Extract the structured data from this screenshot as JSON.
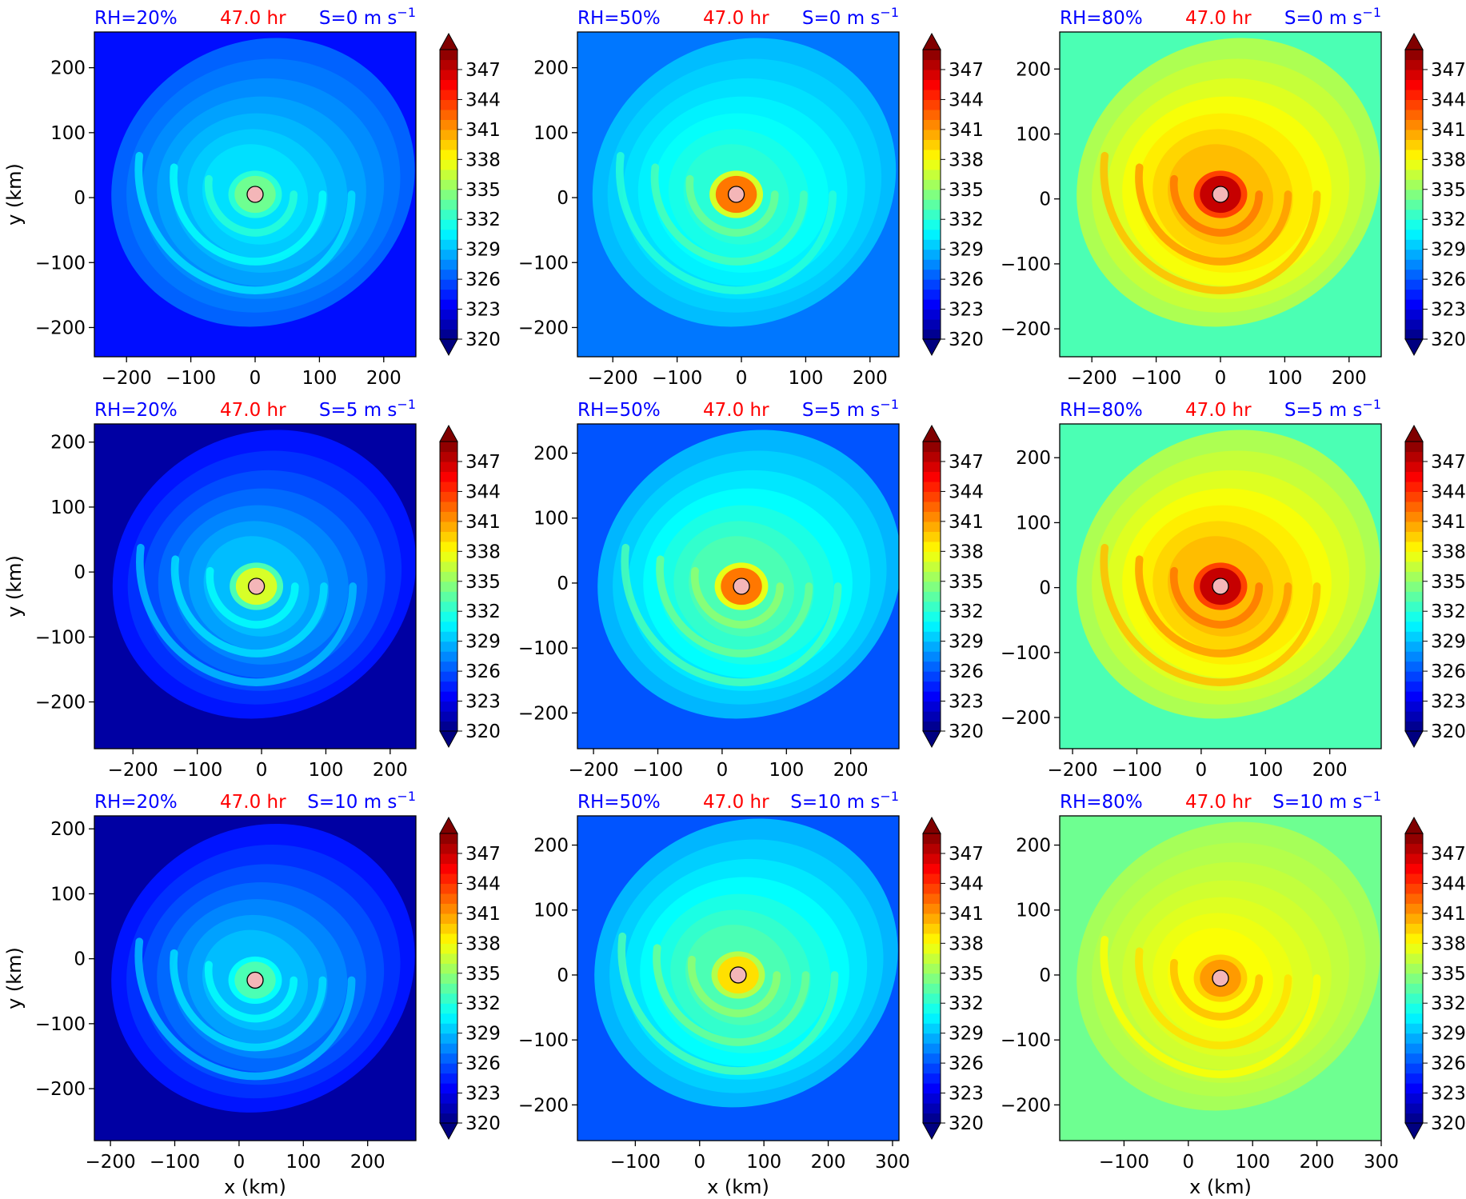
{
  "chart_data": {
    "type": "heatmap",
    "description_units": "color shading over x/y distance in km",
    "colorbar": {
      "ticks": [
        "347",
        "344",
        "341",
        "338",
        "335",
        "332",
        "329",
        "326",
        "323",
        "320"
      ],
      "range": [
        320,
        349
      ],
      "extend": "both",
      "colormap": "jet"
    },
    "axis_labels": {
      "x": "x (km)",
      "y": "y (km)"
    },
    "time_label": "47.0 hr",
    "colors": {
      "rh_label": "#0000ff",
      "time_label": "#ff0000",
      "shear_label": "#0000ff",
      "center_marker": "#f4b6b8"
    },
    "panels": [
      {
        "rh": "RH=20%",
        "time": "47.0 hr",
        "shear": "S=0 m s",
        "shear_exp": "−1",
        "xlim": [
          -250,
          250
        ],
        "ylim": [
          -245,
          255
        ],
        "xticks": [
          "−200",
          "−100",
          "0",
          "100",
          "200"
        ],
        "yticks": [
          "200",
          "100",
          "0",
          "−100",
          "−200"
        ],
        "center": [
          0,
          5
        ],
        "core_value": 334,
        "env_value": 324,
        "band_value": 330
      },
      {
        "rh": "RH=50%",
        "time": "47.0 hr",
        "shear": "S=0 m s",
        "shear_exp": "−1",
        "xlim": [
          -255,
          245
        ],
        "ylim": [
          -245,
          255
        ],
        "xticks": [
          "−200",
          "−100",
          "0",
          "100",
          "200"
        ],
        "yticks": [
          "200",
          "100",
          "0",
          "−100",
          "−200"
        ],
        "center": [
          -8,
          5
        ],
        "core_value": 342,
        "env_value": 327,
        "band_value": 332
      },
      {
        "rh": "RH=80%",
        "time": "47.0 hr",
        "shear": "S=0 m s",
        "shear_exp": "−1",
        "xlim": [
          -250,
          250
        ],
        "ylim": [
          -243,
          257
        ],
        "xticks": [
          "−200",
          "−100",
          "0",
          "100",
          "200"
        ],
        "yticks": [
          "200",
          "100",
          "0",
          "−100",
          "−200"
        ],
        "center": [
          0,
          7
        ],
        "core_value": 347,
        "env_value": 333,
        "band_value": 340
      },
      {
        "rh": "RH=20%",
        "time": "47.0 hr",
        "shear": "S=5 m s",
        "shear_exp": "−1",
        "xlim": [
          -260,
          240
        ],
        "ylim": [
          -272,
          228
        ],
        "xticks": [
          "−200",
          "−100",
          "0",
          "100",
          "200"
        ],
        "yticks": [
          "200",
          "100",
          "0",
          "−100",
          "−200"
        ],
        "center": [
          -8,
          -22
        ],
        "core_value": 337,
        "env_value": 321,
        "band_value": 329
      },
      {
        "rh": "RH=50%",
        "time": "47.0 hr",
        "shear": "S=5 m s",
        "shear_exp": "−1",
        "xlim": [
          -225,
          275
        ],
        "ylim": [
          -255,
          245
        ],
        "xticks": [
          "−200",
          "−100",
          "0",
          "100",
          "200"
        ],
        "yticks": [
          "200",
          "100",
          "0",
          "−100",
          "−200"
        ],
        "center": [
          30,
          -5
        ],
        "core_value": 342,
        "env_value": 326,
        "band_value": 333
      },
      {
        "rh": "RH=80%",
        "time": "47.0 hr",
        "shear": "S=5 m s",
        "shear_exp": "−1",
        "xlim": [
          -220,
          280
        ],
        "ylim": [
          -248,
          252
        ],
        "xticks": [
          "−200",
          "−100",
          "0",
          "100",
          "200"
        ],
        "yticks": [
          "200",
          "100",
          "0",
          "−100",
          "−200"
        ],
        "center": [
          30,
          2
        ],
        "core_value": 347,
        "env_value": 333,
        "band_value": 340
      },
      {
        "rh": "RH=20%",
        "time": "47.0 hr",
        "shear": "S=10 m s",
        "shear_exp": "−1",
        "xlim": [
          -225,
          275
        ],
        "ylim": [
          -280,
          220
        ],
        "xticks": [
          "−200",
          "−100",
          "0",
          "100",
          "200"
        ],
        "yticks": [
          "200",
          "100",
          "0",
          "−100",
          "−200"
        ],
        "center": [
          25,
          -33
        ],
        "core_value": 333,
        "env_value": 321,
        "band_value": 329
      },
      {
        "rh": "RH=50%",
        "time": "47.0 hr",
        "shear": "S=10 m s",
        "shear_exp": "−1",
        "xlim": [
          -190,
          310
        ],
        "ylim": [
          -255,
          245
        ],
        "xticks": [
          "−100",
          "0",
          "100",
          "200",
          "300"
        ],
        "yticks": [
          "200",
          "100",
          "0",
          "−100",
          "−200"
        ],
        "center": [
          60,
          0
        ],
        "core_value": 339,
        "env_value": 326,
        "band_value": 333
      },
      {
        "rh": "RH=80%",
        "time": "47.0 hr",
        "shear": "S=10 m s",
        "shear_exp": "−1",
        "xlim": [
          -200,
          300
        ],
        "ylim": [
          -255,
          245
        ],
        "xticks": [
          "−100",
          "0",
          "100",
          "200",
          "300"
        ],
        "yticks": [
          "200",
          "100",
          "0",
          "−100",
          "−200"
        ],
        "center": [
          50,
          -5
        ],
        "core_value": 341,
        "env_value": 334,
        "band_value": 338
      }
    ]
  }
}
